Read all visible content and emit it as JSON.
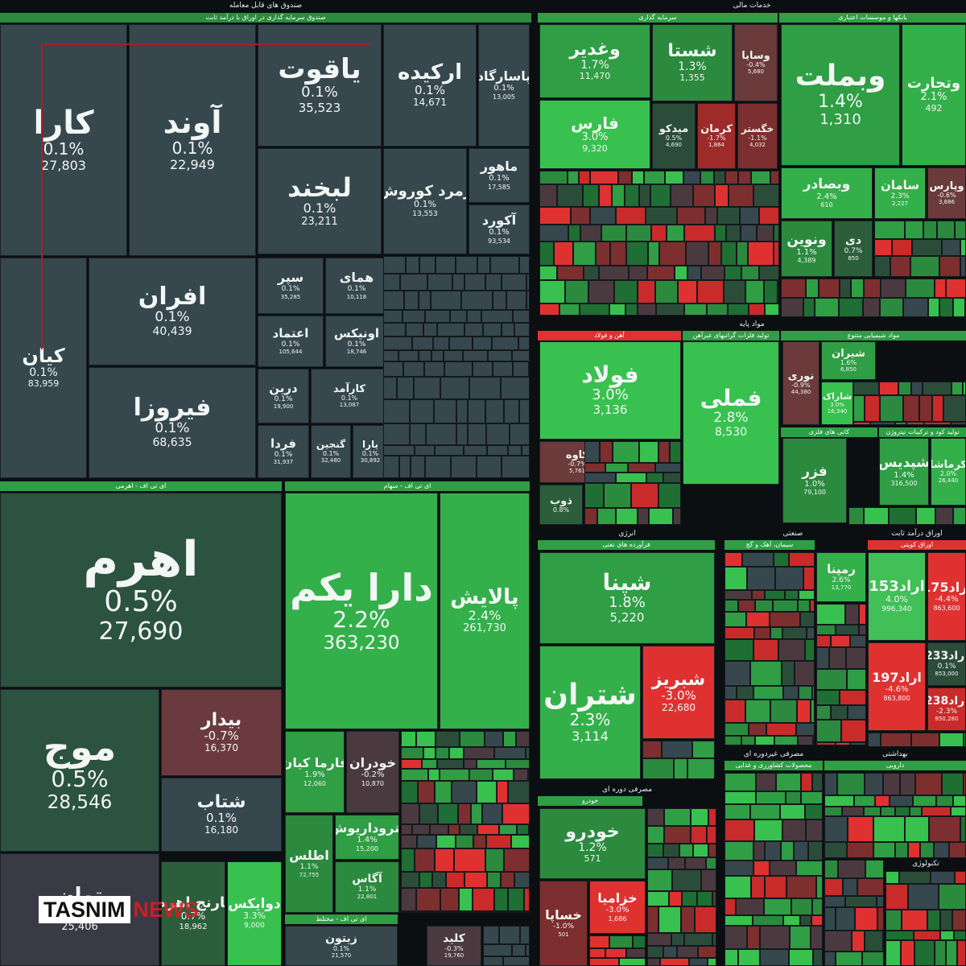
{
  "chart_data": {
    "type": "treemap",
    "sectors": [
      {
        "name": "صندوق های قابل معامله",
        "sub": "صندوق سرمایه گذاری در اوراق با درآمد ثابت"
      },
      {
        "name": "خدمات مالی",
        "sub": "سرمایه گذاری"
      },
      {
        "name": "بانکها و موسسات اعتباری"
      },
      {
        "name": "مواد پایه",
        "sub": "آهن و فولاد"
      },
      {
        "name": "تولید فلزات گرانبهای غیرآهن"
      },
      {
        "name": "مواد شیمیایی متنوع"
      },
      {
        "name": "کانی های فلزی"
      },
      {
        "name": "تولید کود و ترکیبات نیتروژن"
      },
      {
        "name": "انرژی",
        "sub": "فرآورده های نفتی"
      },
      {
        "name": "صنعتی",
        "sub": "سیمان، آهک و گچ"
      },
      {
        "name": "اوراق درآمد ثابت",
        "sub": "اوراق کوپنی"
      },
      {
        "name": "ای تی اف - اهرمی"
      },
      {
        "name": "ای تی اف - سهام"
      },
      {
        "name": "ای تی اف - مختلط"
      },
      {
        "name": "مصرفی دوره ای",
        "sub": "خودرو"
      },
      {
        "name": "مصرفی غیردوره ای",
        "sub": "محصولات کشاورزی و غذایی"
      },
      {
        "name": "بهداشتی",
        "sub": "دارویی"
      },
      {
        "name": "تکنولوژی"
      }
    ],
    "tiles": [
      {
        "name": "کارا",
        "change": "0.1%",
        "price": "27,803",
        "color": "#36474e"
      },
      {
        "name": "آوند",
        "change": "0.1%",
        "price": "22,949",
        "color": "#36474e"
      },
      {
        "name": "یاقوت",
        "change": "0.1%",
        "price": "35,523",
        "color": "#36474e"
      },
      {
        "name": "ارکیده",
        "change": "0.1%",
        "price": "14,671",
        "color": "#36474e"
      },
      {
        "name": "پاسارگاد",
        "change": "0.1%",
        "price": "13,005",
        "color": "#36474e"
      },
      {
        "name": "لبخند",
        "change": "0.1%",
        "price": "23,211",
        "color": "#36474e"
      },
      {
        "name": "زمرد کوروش",
        "change": "0.1%",
        "price": "13,553",
        "color": "#36474e"
      },
      {
        "name": "ماهور",
        "change": "0.1%",
        "price": "17,585",
        "color": "#36474e"
      },
      {
        "name": "آکورد",
        "change": "0.1%",
        "price": "93,534",
        "color": "#36474e"
      },
      {
        "name": "کیان",
        "change": "0.1%",
        "price": "83,959",
        "color": "#36474e"
      },
      {
        "name": "افران",
        "change": "0.1%",
        "price": "40,439",
        "color": "#36474e"
      },
      {
        "name": "فیروزا",
        "change": "0.1%",
        "price": "68,635",
        "color": "#36474e"
      },
      {
        "name": "سپر",
        "change": "0.1%",
        "price": "35,285",
        "color": "#36474e"
      },
      {
        "name": "همای",
        "change": "0.1%",
        "price": "10,118",
        "color": "#36474e"
      },
      {
        "name": "اعتماد",
        "change": "0.1%",
        "price": "105,644",
        "color": "#36474e"
      },
      {
        "name": "اونیکس",
        "change": "0.1%",
        "price": "18,746",
        "color": "#36474e"
      },
      {
        "name": "درین",
        "change": "0.1%",
        "price": "19,900",
        "color": "#36474e"
      },
      {
        "name": "کارآمد",
        "change": "0.1%",
        "price": "13,087",
        "color": "#36474e"
      },
      {
        "name": "فردا",
        "change": "0.1%",
        "price": "31,937",
        "color": "#36474e"
      },
      {
        "name": "گنجین",
        "change": "0.1%",
        "price": "32,480",
        "color": "#36474e"
      },
      {
        "name": "یارا",
        "change": "0.1%",
        "price": "30,892",
        "color": "#36474e"
      },
      {
        "name": "وغدیر",
        "change": "1.7%",
        "price": "11,470",
        "color": "#2f9e44"
      },
      {
        "name": "شستا",
        "change": "1.3%",
        "price": "1,355",
        "color": "#2b8a3e"
      },
      {
        "name": "وسایا",
        "change": "-0.4%",
        "price": "5,680",
        "color": "#6b3a3a"
      },
      {
        "name": "فارس",
        "change": "3.0%",
        "price": "9,320",
        "color": "#38c14f"
      },
      {
        "name": "میدکو",
        "change": "0.5%",
        "price": "4,690",
        "color": "#2c4c3a"
      },
      {
        "name": "کرمان",
        "change": "-1.7%",
        "price": "1,864",
        "color": "#9e2a2a"
      },
      {
        "name": "خگستر",
        "change": "-1.1%",
        "price": "4,032",
        "color": "#7d2e2e"
      },
      {
        "name": "وبملت",
        "change": "1.4%",
        "price": "1,310",
        "color": "#2f9e44"
      },
      {
        "name": "وتجارت",
        "change": "2.1%",
        "price": "492",
        "color": "#34b04b"
      },
      {
        "name": "وبصادر",
        "change": "2.4%",
        "price": "610",
        "color": "#34b04b"
      },
      {
        "name": "سامان",
        "change": "2.3%",
        "price": "2,227",
        "color": "#34b04b"
      },
      {
        "name": "وپارس",
        "change": "-0.6%",
        "price": "3,886",
        "color": "#6b3a3a"
      },
      {
        "name": "ونوین",
        "change": "1.1%",
        "price": "4,389",
        "color": "#2b8a3e"
      },
      {
        "name": "دی",
        "change": "0.7%",
        "price": "850",
        "color": "#2c5e3c"
      },
      {
        "name": "فولاد",
        "change": "3.0%",
        "price": "3,136",
        "color": "#38c14f"
      },
      {
        "name": "فملی",
        "change": "2.8%",
        "price": "8,530",
        "color": "#38c14f"
      },
      {
        "name": "کاوه",
        "change": "-0.7%",
        "price": "5,761",
        "color": "#6b3a3a"
      },
      {
        "name": "ذوب",
        "change": "0.8%",
        "price": "",
        "color": "#2c5e3c"
      },
      {
        "name": "نوری",
        "change": "-0.9%",
        "price": "44,380",
        "color": "#6b3a3a"
      },
      {
        "name": "شیران",
        "change": "1.6%",
        "price": "6,850",
        "color": "#2f9e44"
      },
      {
        "name": "شاراک",
        "change": "3.0%",
        "price": "16,340",
        "color": "#38c14f"
      },
      {
        "name": "فزر",
        "change": "1.0%",
        "price": "79,100",
        "color": "#2b8a3e"
      },
      {
        "name": "شپدیس",
        "change": "1.4%",
        "price": "316,500",
        "color": "#2f9e44"
      },
      {
        "name": "کرماشا",
        "change": "2.0%",
        "price": "26,440",
        "color": "#34b04b"
      },
      {
        "name": "شپنا",
        "change": "1.8%",
        "price": "5,220",
        "color": "#2f9e44"
      },
      {
        "name": "شتران",
        "change": "2.3%",
        "price": "3,114",
        "color": "#34b04b"
      },
      {
        "name": "شبریز",
        "change": "-3.0%",
        "price": "22,680",
        "color": "#e03131"
      },
      {
        "name": "رمپنا",
        "change": "2.6%",
        "price": "13,770",
        "color": "#34b04b"
      },
      {
        "name": "اراد153",
        "change": "4.0%",
        "price": "996,340",
        "color": "#40c057"
      },
      {
        "name": "اراد175",
        "change": "-4.4%",
        "price": "863,600",
        "color": "#e03131"
      },
      {
        "name": "اراد233",
        "change": "0.1%",
        "price": "853,000",
        "color": "#2c4c3a"
      },
      {
        "name": "اراد197",
        "change": "-4.6%",
        "price": "863,800",
        "color": "#e03131"
      },
      {
        "name": "اراد238",
        "change": "-2.3%",
        "price": "850,280",
        "color": "#c92a2a"
      },
      {
        "name": "اهرم",
        "change": "0.5%",
        "price": "27,690",
        "color": "#2c5240"
      },
      {
        "name": "موج",
        "change": "0.5%",
        "price": "28,546",
        "color": "#2c5240"
      },
      {
        "name": "بیدار",
        "change": "-0.7%",
        "price": "16,370",
        "color": "#6b3a3e"
      },
      {
        "name": "شتاب",
        "change": "0.1%",
        "price": "16,180",
        "color": "#36474e"
      },
      {
        "name": "توان",
        "change": "0.2%",
        "price": "25,406",
        "color": "#3a3a44"
      },
      {
        "name": "نارنج اهرم",
        "change": "0.7%",
        "price": "18,962",
        "color": "#2c5e3c"
      },
      {
        "name": "دارا یکم",
        "change": "2.2%",
        "price": "363,230",
        "color": "#34b04b"
      },
      {
        "name": "پالایش",
        "change": "2.4%",
        "price": "261,730",
        "color": "#34b04b"
      },
      {
        "name": "دوایکس",
        "change": "3.3%",
        "price": "9,000",
        "color": "#38c14f"
      },
      {
        "name": "فارما کیان",
        "change": "1.9%",
        "price": "12,060",
        "color": "#2f9e44"
      },
      {
        "name": "خودران",
        "change": "-0.2%",
        "price": "10,870",
        "color": "#4a3a40"
      },
      {
        "name": "اطلس",
        "change": "1.1%",
        "price": "72,755",
        "color": "#2b8a3e"
      },
      {
        "name": "پتروداریوش",
        "change": "1.4%",
        "price": "15,200",
        "color": "#2f9e44"
      },
      {
        "name": "آگاس",
        "change": "1.1%",
        "price": "22,801",
        "color": "#2b8a3e"
      },
      {
        "name": "زیتون",
        "change": "0.1%",
        "price": "21,570",
        "color": "#36474e"
      },
      {
        "name": "کلید",
        "change": "-0.3%",
        "price": "19,760",
        "color": "#4a3a40"
      },
      {
        "name": "خودرو",
        "change": "1.2%",
        "price": "571",
        "color": "#2b8a3e"
      },
      {
        "name": "خساپا",
        "change": "-1.0%",
        "price": "501",
        "color": "#7d2e2e"
      },
      {
        "name": "خزامیا",
        "change": "-3.0%",
        "price": "1,686",
        "color": "#e03131"
      }
    ]
  },
  "watermark": {
    "brand": "TASNIM",
    "brand_suffix": "NEWS"
  }
}
